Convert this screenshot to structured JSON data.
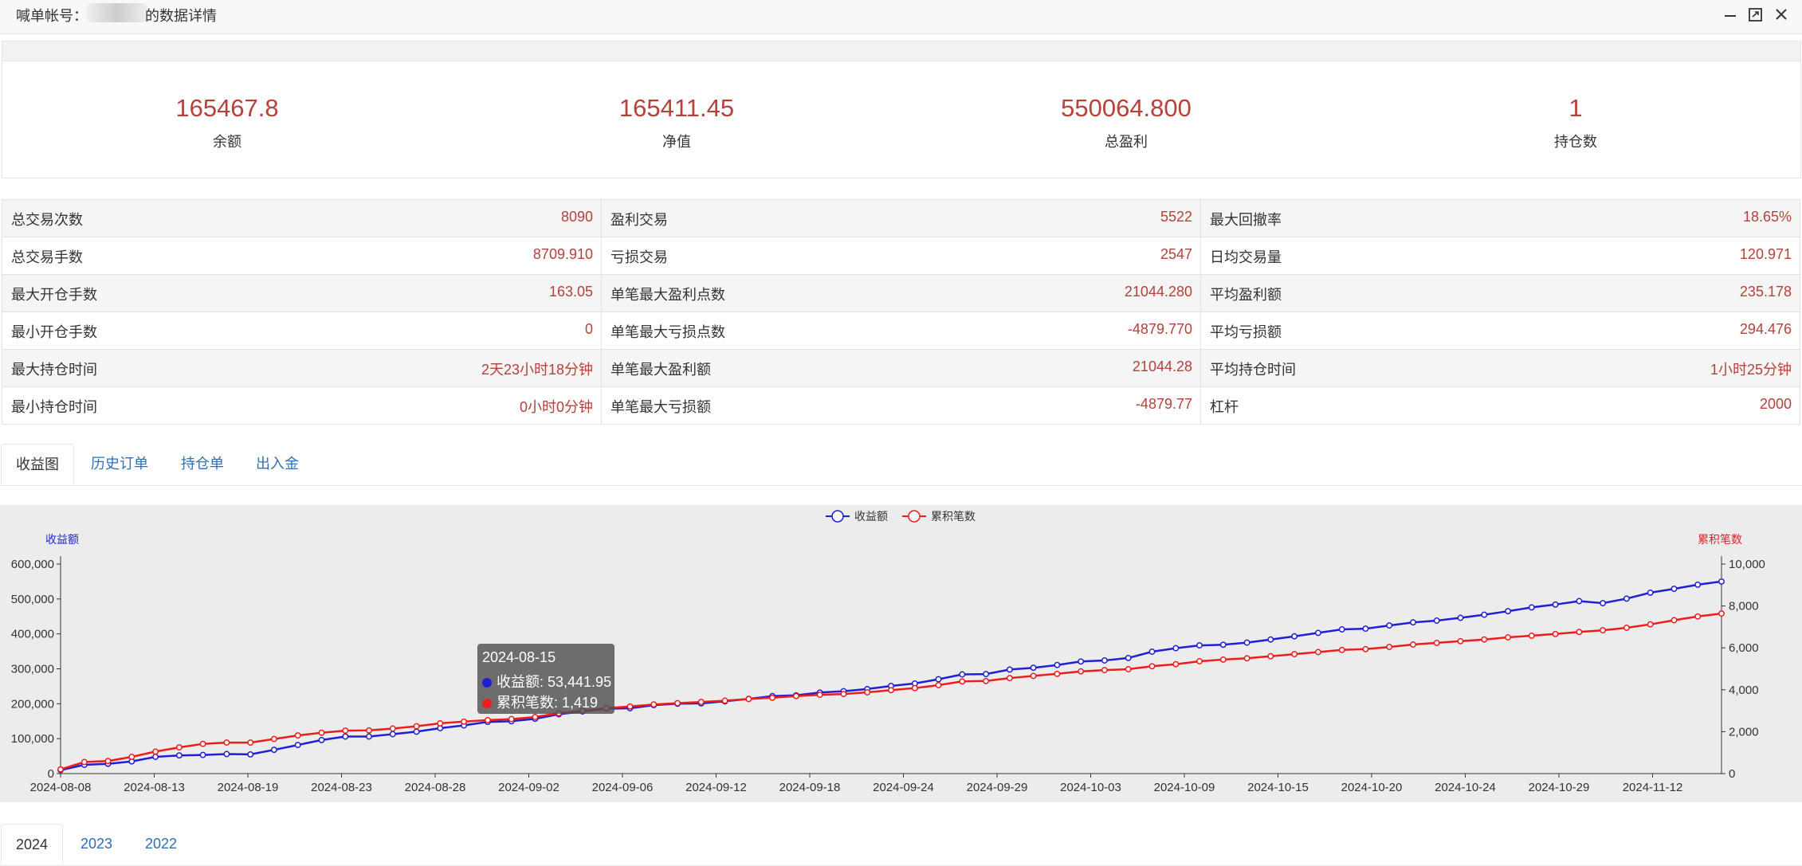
{
  "window": {
    "title_prefix": "喊单帐号：",
    "title_suffix": "的数据详情",
    "buttons": [
      "minimize-icon",
      "maximize-icon",
      "close-icon"
    ]
  },
  "summary": [
    {
      "value": "165467.8",
      "label": "余额"
    },
    {
      "value": "165411.45",
      "label": "净值"
    },
    {
      "value": "550064.800",
      "label": "总盈利"
    },
    {
      "value": "1",
      "label": "持仓数"
    }
  ],
  "details": [
    [
      {
        "k": "总交易次数",
        "v": "8090"
      },
      {
        "k": "盈利交易",
        "v": "5522"
      },
      {
        "k": "最大回撤率",
        "v": "18.65%"
      }
    ],
    [
      {
        "k": "总交易手数",
        "v": "8709.910"
      },
      {
        "k": "亏损交易",
        "v": "2547"
      },
      {
        "k": "日均交易量",
        "v": "120.971"
      }
    ],
    [
      {
        "k": "最大开仓手数",
        "v": "163.05"
      },
      {
        "k": "单笔最大盈利点数",
        "v": "21044.280"
      },
      {
        "k": "平均盈利额",
        "v": "235.178"
      }
    ],
    [
      {
        "k": "最小开仓手数",
        "v": "0"
      },
      {
        "k": "单笔最大亏损点数",
        "v": "-4879.770"
      },
      {
        "k": "平均亏损额",
        "v": "294.476"
      }
    ],
    [
      {
        "k": "最大持仓时间",
        "v": "2天23小时18分钟"
      },
      {
        "k": "单笔最大盈利额",
        "v": "21044.28"
      },
      {
        "k": "平均持仓时间",
        "v": "1小时25分钟"
      }
    ],
    [
      {
        "k": "最小持仓时间",
        "v": "0小时0分钟"
      },
      {
        "k": "单笔最大亏损额",
        "v": "-4879.77"
      },
      {
        "k": "杠杆",
        "v": "2000"
      }
    ]
  ],
  "tabs": [
    "收益图",
    "历史订单",
    "持仓单",
    "出入金"
  ],
  "year_tabs": [
    "2024",
    "2023",
    "2022"
  ],
  "tooltip": {
    "date": "2024-08-15",
    "row1": "收益额: 53,441.95",
    "row2": "累积笔数: 1,419"
  },
  "colors": {
    "accent_red": "#b5413a",
    "series_blue": "#1f1fd6",
    "series_red": "#ee1c1c",
    "link": "#2f6fb3"
  },
  "chart_data": {
    "type": "line",
    "legend": [
      "收益额",
      "累积笔数"
    ],
    "legend_position": "top-center",
    "y_left_label": "收益额",
    "y_right_label": "累积笔数",
    "y_left_ticks": [
      "0",
      "100,000",
      "200,000",
      "300,000",
      "400,000",
      "500,000",
      "600,000"
    ],
    "y_right_ticks": [
      "0",
      "2,000",
      "4,000",
      "6,000",
      "8,000",
      "10,000"
    ],
    "ylim_left": [
      0,
      600000
    ],
    "ylim_right": [
      0,
      10000
    ],
    "x_tick_labels": [
      "2024-08-08",
      "2024-08-13",
      "2024-08-19",
      "2024-08-23",
      "2024-08-28",
      "2024-09-02",
      "2024-09-06",
      "2024-09-12",
      "2024-09-18",
      "2024-09-24",
      "2024-09-29",
      "2024-10-03",
      "2024-10-09",
      "2024-10-15",
      "2024-10-20",
      "2024-10-24",
      "2024-10-29",
      "2024-11-12"
    ],
    "grid": false,
    "series": [
      {
        "name": "收益额",
        "axis": "left",
        "values": [
          10000,
          25000,
          28000,
          35000,
          48000,
          52000,
          53442,
          56000,
          55000,
          68000,
          82000,
          96000,
          106000,
          106000,
          113000,
          120000,
          130000,
          138000,
          148000,
          150000,
          157000,
          170000,
          178000,
          186000,
          187000,
          196000,
          200000,
          201000,
          207000,
          214000,
          222000,
          224000,
          232000,
          236000,
          242000,
          251000,
          258000,
          270000,
          284000,
          285000,
          298000,
          303000,
          311000,
          321000,
          324000,
          331000,
          349000,
          359000,
          367000,
          369000,
          375000,
          384000,
          393000,
          403000,
          413000,
          415000,
          424000,
          433000,
          438000,
          446000,
          455000,
          465000,
          476000,
          484000,
          494000,
          488000,
          501000,
          518000,
          529000,
          541000,
          550065
        ]
      },
      {
        "name": "累积笔数",
        "axis": "right",
        "values": [
          200,
          550,
          600,
          800,
          1050,
          1250,
          1419,
          1480,
          1480,
          1650,
          1820,
          1950,
          2050,
          2060,
          2150,
          2260,
          2400,
          2480,
          2550,
          2600,
          2700,
          2880,
          3000,
          3120,
          3200,
          3300,
          3360,
          3420,
          3480,
          3560,
          3620,
          3700,
          3760,
          3800,
          3880,
          3980,
          4080,
          4220,
          4400,
          4420,
          4560,
          4660,
          4760,
          4880,
          4940,
          4980,
          5120,
          5220,
          5360,
          5440,
          5500,
          5600,
          5700,
          5800,
          5900,
          5940,
          6040,
          6160,
          6240,
          6320,
          6400,
          6500,
          6580,
          6660,
          6760,
          6840,
          6960,
          7120,
          7320,
          7500,
          7640
        ]
      }
    ]
  }
}
